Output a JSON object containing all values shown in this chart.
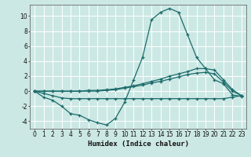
{
  "title": "",
  "xlabel": "Humidex (Indice chaleur)",
  "ylabel": "",
  "background_color": "#cce8e4",
  "grid_color": "#ffffff",
  "line_color": "#1a6b6b",
  "xlim": [
    -0.5,
    23.5
  ],
  "ylim": [
    -5,
    11.5
  ],
  "yticks": [
    -4,
    -2,
    0,
    2,
    4,
    6,
    8,
    10
  ],
  "xticks": [
    0,
    1,
    2,
    3,
    4,
    5,
    6,
    7,
    8,
    9,
    10,
    11,
    12,
    13,
    14,
    15,
    16,
    17,
    18,
    19,
    20,
    21,
    22,
    23
  ],
  "series": [
    {
      "x": [
        0,
        1,
        2,
        3,
        4,
        5,
        6,
        7,
        8,
        9,
        10,
        11,
        12,
        13,
        14,
        15,
        16,
        17,
        18,
        19,
        20,
        21,
        22,
        23
      ],
      "y": [
        0.0,
        -0.8,
        -1.2,
        -2.0,
        -3.0,
        -3.2,
        -3.8,
        -4.2,
        -4.5,
        -3.6,
        -1.5,
        1.5,
        4.5,
        9.5,
        10.5,
        11.0,
        10.5,
        7.5,
        4.5,
        3.0,
        1.5,
        1.0,
        -0.5,
        -0.7
      ]
    },
    {
      "x": [
        0,
        1,
        2,
        3,
        4,
        5,
        6,
        7,
        8,
        9,
        10,
        11,
        12,
        13,
        14,
        15,
        16,
        17,
        18,
        19,
        20,
        21,
        22,
        23
      ],
      "y": [
        0.0,
        0.0,
        0.0,
        0.0,
        0.0,
        0.0,
        0.1,
        0.1,
        0.2,
        0.3,
        0.5,
        0.7,
        1.0,
        1.3,
        1.6,
        2.0,
        2.3,
        2.6,
        3.0,
        3.0,
        2.8,
        1.5,
        0.2,
        -0.6
      ]
    },
    {
      "x": [
        0,
        1,
        2,
        3,
        4,
        5,
        6,
        7,
        8,
        9,
        10,
        11,
        12,
        13,
        14,
        15,
        16,
        17,
        18,
        19,
        20,
        21,
        22,
        23
      ],
      "y": [
        0.0,
        0.0,
        0.0,
        0.0,
        0.0,
        0.0,
        0.0,
        0.0,
        0.1,
        0.2,
        0.4,
        0.6,
        0.8,
        1.1,
        1.3,
        1.6,
        1.9,
        2.2,
        2.4,
        2.5,
        2.3,
        1.2,
        0.0,
        -0.6
      ]
    },
    {
      "x": [
        0,
        1,
        2,
        3,
        4,
        5,
        6,
        7,
        8,
        9,
        10,
        11,
        12,
        13,
        14,
        15,
        16,
        17,
        18,
        19,
        20,
        21,
        22,
        23
      ],
      "y": [
        0.0,
        -0.3,
        -0.6,
        -0.9,
        -1.0,
        -1.0,
        -1.0,
        -1.0,
        -1.0,
        -1.0,
        -1.0,
        -1.0,
        -1.0,
        -1.0,
        -1.0,
        -1.0,
        -1.0,
        -1.0,
        -1.0,
        -1.0,
        -1.0,
        -1.0,
        -0.8,
        -0.6
      ]
    }
  ]
}
